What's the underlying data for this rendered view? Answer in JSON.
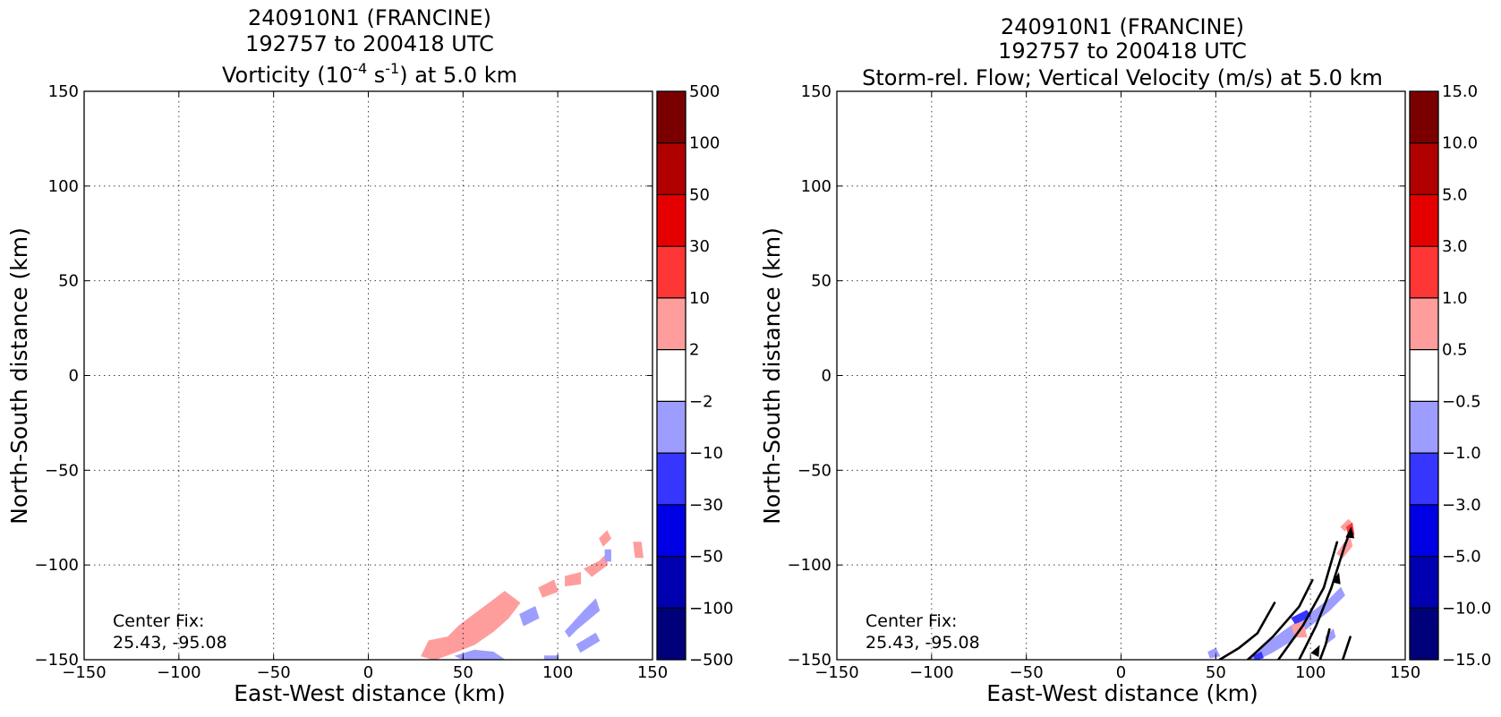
{
  "chart_data": [
    {
      "type": "heatmap",
      "title": [
        "240910N1 (FRANCINE)",
        "192757 to 200418 UTC"
      ],
      "subtitle": {
        "pre": "Vorticity (10",
        "exp1": "-4",
        "mid": " s",
        "exp2": "-1",
        "post": ") at 5.0 km"
      },
      "xlabel": "East-West distance (km)",
      "ylabel": "North-South distance (km)",
      "xlim": [
        -150,
        150
      ],
      "ylim": [
        -150,
        150
      ],
      "xticks": [
        "−150",
        "−100",
        "−50",
        "0",
        "50",
        "100",
        "150"
      ],
      "yticks": [
        "150",
        "100",
        "50",
        "0",
        "−50",
        "−100",
        "−150"
      ],
      "grid": true,
      "annotation": [
        "Center Fix:",
        "25.43, -95.08"
      ],
      "colorbar": {
        "labels": [
          "500",
          "100",
          "50",
          "30",
          "10",
          "2",
          "−2",
          "−10",
          "−30",
          "−50",
          "−100",
          "−500"
        ],
        "colors": [
          "#7a0000",
          "#b00000",
          "#e50000",
          "#ff3636",
          "#ff9d9d",
          "#ffffff",
          "#9d9dff",
          "#3636ff",
          "#0000e5",
          "#0000b0",
          "#00007a"
        ]
      },
      "regions": [
        {
          "level": "2 to 10",
          "color": "#ff9d9d",
          "points": [
            [
              28,
              -148
            ],
            [
              32,
              -140
            ],
            [
              42,
              -138
            ],
            [
              48,
              -132
            ],
            [
              56,
              -126
            ],
            [
              64,
              -120
            ],
            [
              72,
              -114
            ],
            [
              80,
              -120
            ],
            [
              74,
              -128
            ],
            [
              66,
              -135
            ],
            [
              56,
              -142
            ],
            [
              46,
              -146
            ],
            [
              35,
              -150
            ]
          ]
        },
        {
          "level": "2 to 10",
          "color": "#ff9d9d",
          "points": [
            [
              90,
              -112
            ],
            [
              98,
              -108
            ],
            [
              100,
              -114
            ],
            [
              92,
              -117
            ]
          ]
        },
        {
          "level": "2 to 10",
          "color": "#ff9d9d",
          "points": [
            [
              104,
              -106
            ],
            [
              112,
              -104
            ],
            [
              112,
              -110
            ],
            [
              104,
              -111
            ]
          ]
        },
        {
          "level": "2 to 10",
          "color": "#ff9d9d",
          "points": [
            [
              114,
              -102
            ],
            [
              122,
              -98
            ],
            [
              126,
              -94
            ],
            [
              126,
              -100
            ],
            [
              118,
              -106
            ]
          ]
        },
        {
          "level": "2 to 10",
          "color": "#ff9d9d",
          "points": [
            [
              122,
              -86
            ],
            [
              126,
              -82
            ],
            [
              128,
              -86
            ],
            [
              124,
              -90
            ]
          ]
        },
        {
          "level": "2 to 10",
          "color": "#ff9d9d",
          "points": [
            [
              140,
              -88
            ],
            [
              144,
              -88
            ],
            [
              145,
              -96
            ],
            [
              141,
              -96
            ]
          ]
        },
        {
          "level": "-10 to -2",
          "color": "#9d9dff",
          "points": [
            [
              46,
              -148
            ],
            [
              56,
              -145
            ],
            [
              66,
              -146
            ],
            [
              72,
              -150
            ],
            [
              50,
              -150
            ]
          ]
        },
        {
          "level": "-10 to -2",
          "color": "#9d9dff",
          "points": [
            [
              80,
              -126
            ],
            [
              88,
              -122
            ],
            [
              90,
              -128
            ],
            [
              82,
              -132
            ]
          ]
        },
        {
          "level": "-10 to -2",
          "color": "#9d9dff",
          "points": [
            [
              104,
              -135
            ],
            [
              114,
              -124
            ],
            [
              120,
              -118
            ],
            [
              122,
              -124
            ],
            [
              110,
              -134
            ],
            [
              106,
              -138
            ]
          ]
        },
        {
          "level": "-10 to -2",
          "color": "#9d9dff",
          "points": [
            [
              110,
              -142
            ],
            [
              120,
              -136
            ],
            [
              122,
              -140
            ],
            [
              112,
              -146
            ]
          ]
        },
        {
          "level": "-10 to -2",
          "color": "#9d9dff",
          "points": [
            [
              125,
              -92
            ],
            [
              128,
              -92
            ],
            [
              128,
              -98
            ],
            [
              125,
              -98
            ]
          ]
        },
        {
          "level": "-10 to -2",
          "color": "#9d9dff",
          "points": [
            [
              93,
              -148
            ],
            [
              100,
              -148
            ],
            [
              100,
              -150
            ],
            [
              93,
              -150
            ]
          ]
        }
      ]
    },
    {
      "type": "heatmap",
      "title": [
        "240910N1 (FRANCINE)",
        "192757 to 200418 UTC"
      ],
      "subtitle": {
        "text": "Storm-rel. Flow; Vertical Velocity (m/s) at 5.0 km"
      },
      "xlabel": "East-West distance (km)",
      "ylabel": "North-South distance (km)",
      "xlim": [
        -150,
        150
      ],
      "ylim": [
        -150,
        150
      ],
      "xticks": [
        "−150",
        "−100",
        "−50",
        "0",
        "50",
        "100",
        "150"
      ],
      "yticks": [
        "150",
        "100",
        "50",
        "0",
        "−50",
        "−100",
        "−150"
      ],
      "grid": true,
      "annotation": [
        "Center Fix:",
        "25.43, -95.08"
      ],
      "colorbar": {
        "labels": [
          "15.0",
          "10.0",
          "5.0",
          "3.0",
          "1.0",
          "0.5",
          "−0.5",
          "−1.0",
          "−3.0",
          "−5.0",
          "−10.0",
          "−15.0"
        ],
        "colors": [
          "#7a0000",
          "#b00000",
          "#e50000",
          "#ff3636",
          "#ff9d9d",
          "#ffffff",
          "#9d9dff",
          "#3636ff",
          "#0000e5",
          "#0000b0",
          "#00007a"
        ]
      },
      "regions": [
        {
          "level": "-1.0 to -0.5",
          "color": "#9d9dff",
          "points": [
            [
              66,
              -150
            ],
            [
              76,
              -142
            ],
            [
              90,
              -132
            ],
            [
              102,
              -124
            ],
            [
              110,
              -118
            ],
            [
              116,
              -112
            ],
            [
              118,
              -116
            ],
            [
              110,
              -124
            ],
            [
              100,
              -132
            ],
            [
              90,
              -140
            ],
            [
              80,
              -146
            ],
            [
              72,
              -150
            ]
          ]
        },
        {
          "level": "-1.0 to -0.5",
          "color": "#9d9dff",
          "points": [
            [
              108,
              -138
            ],
            [
              112,
              -134
            ],
            [
              113,
              -138
            ],
            [
              109,
              -141
            ]
          ]
        },
        {
          "level": "-1.0 to -0.5",
          "color": "#9d9dff",
          "points": [
            [
              46,
              -146
            ],
            [
              50,
              -144
            ],
            [
              52,
              -148
            ],
            [
              47,
              -149
            ]
          ]
        },
        {
          "level": "-3.0 to -1.0",
          "color": "#3636ff",
          "points": [
            [
              90,
              -128
            ],
            [
              98,
              -124
            ],
            [
              100,
              -127
            ],
            [
              92,
              -131
            ]
          ]
        },
        {
          "level": "-3.0 to -1.0",
          "color": "#3636ff",
          "points": [
            [
              70,
              -148
            ],
            [
              74,
              -146
            ],
            [
              75,
              -149
            ],
            [
              71,
              -150
            ]
          ]
        },
        {
          "level": "1.0 to 3.0",
          "color": "#ff9d9d",
          "points": [
            [
              114,
              -94
            ],
            [
              118,
              -88
            ],
            [
              121,
              -86
            ],
            [
              122,
              -90
            ],
            [
              117,
              -96
            ]
          ]
        },
        {
          "level": "1.0 to 3.0",
          "color": "#ff9d9d",
          "points": [
            [
              116,
              -80
            ],
            [
              120,
              -76
            ],
            [
              122,
              -78
            ],
            [
              118,
              -82
            ]
          ]
        },
        {
          "level": "1.0 to 3.0",
          "color": "#ff9d9d",
          "points": [
            [
              90,
              -132
            ],
            [
              96,
              -130
            ],
            [
              98,
              -138
            ],
            [
              92,
              -138
            ]
          ]
        },
        {
          "level": "3.0 to 5.0",
          "color": "#ff3636",
          "points": [
            [
              119,
              -80
            ],
            [
              122,
              -78
            ],
            [
              123,
              -84
            ],
            [
              120,
              -84
            ]
          ]
        }
      ],
      "streamlines": [
        [
          [
            52,
            -150
          ],
          [
            62,
            -144
          ],
          [
            72,
            -136
          ],
          [
            81,
            -120
          ]
        ],
        [
          [
            67,
            -150
          ],
          [
            80,
            -138
          ],
          [
            94,
            -122
          ],
          [
            101,
            -108
          ]
        ],
        [
          [
            83,
            -150
          ],
          [
            96,
            -132
          ],
          [
            107,
            -112
          ],
          [
            114,
            -88
          ]
        ],
        [
          [
            94,
            -150
          ],
          [
            103,
            -132
          ],
          [
            111,
            -112
          ],
          [
            118,
            -90
          ],
          [
            121,
            -82
          ]
        ],
        [
          [
            105,
            -150
          ],
          [
            108,
            -142
          ],
          [
            110,
            -134
          ]
        ],
        [
          [
            117,
            -150
          ],
          [
            119,
            -144
          ],
          [
            121,
            -138
          ]
        ]
      ],
      "arrows": [
        {
          "at": [
            114,
            -108
          ],
          "dir": [
            0.25,
            1
          ]
        },
        {
          "at": [
            121,
            -84
          ],
          "dir": [
            0.1,
            1
          ]
        },
        {
          "at": [
            103,
            -146
          ],
          "dir": [
            0.5,
            1
          ]
        }
      ]
    }
  ]
}
